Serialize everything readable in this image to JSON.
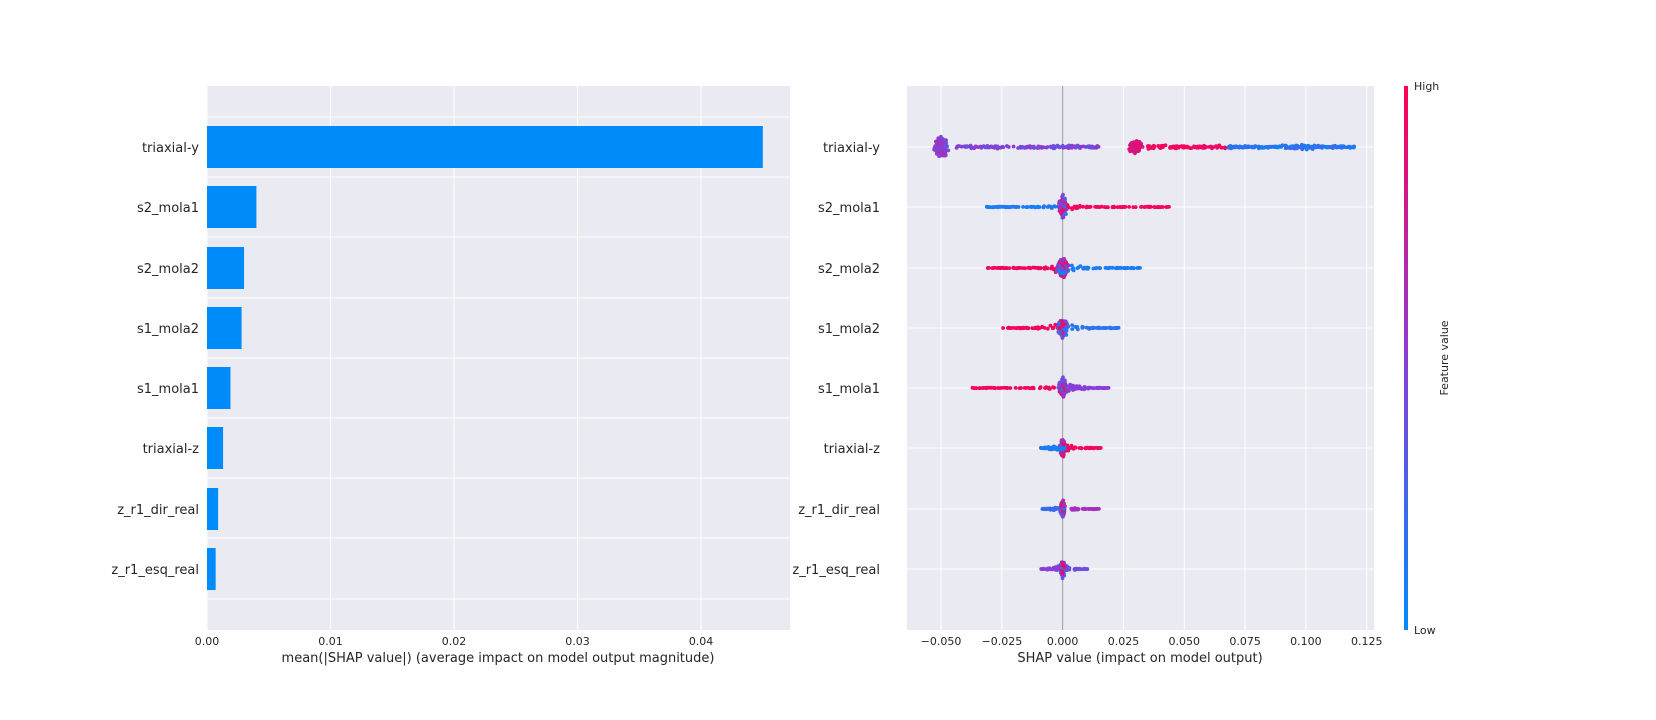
{
  "chart_data": [
    {
      "type": "bar",
      "orientation": "horizontal",
      "categories": [
        "triaxial-y",
        "s2_mola1",
        "s2_mola2",
        "s1_mola2",
        "s1_mola1",
        "triaxial-z",
        "z_r1_dir_real",
        "z_r1_esq_real"
      ],
      "values": [
        0.045,
        0.004,
        0.003,
        0.0028,
        0.0019,
        0.0013,
        0.0009,
        0.0007
      ],
      "xlabel": "mean(|SHAP value|) (average impact on model output magnitude)",
      "xticks": [
        "0.00",
        "0.01",
        "0.02",
        "0.03",
        "0.04"
      ],
      "xlim": [
        0,
        0.0472
      ],
      "grid": true,
      "bar_color": "#008bfb",
      "background": "#eaeaf2"
    },
    {
      "type": "scatter",
      "subtype": "beeswarm",
      "categories": [
        "triaxial-y",
        "s2_mola1",
        "s2_mola2",
        "s1_mola2",
        "s1_mola1",
        "triaxial-z",
        "z_r1_dir_real",
        "z_r1_esq_real"
      ],
      "series": [
        {
          "category": "triaxial-y",
          "x_min": -0.055,
          "x_max": 0.12,
          "dense_clusters": [
            -0.05,
            0.03
          ],
          "trend": "high values near -0.05 and 0.03–0.065, low values 0.07–0.12"
        },
        {
          "category": "s2_mola1",
          "x_min": -0.032,
          "x_max": 0.044,
          "dense_clusters": [
            0.0
          ],
          "trend": "high values positive, low values negative"
        },
        {
          "category": "s2_mola2",
          "x_min": -0.031,
          "x_max": 0.032,
          "dense_clusters": [
            0.002
          ],
          "trend": "high values negative, low values positive"
        },
        {
          "category": "s1_mola2",
          "x_min": -0.025,
          "x_max": 0.024,
          "dense_clusters": [
            0.0
          ],
          "trend": "high values negative, low values positive"
        },
        {
          "category": "s1_mola1",
          "x_min": -0.038,
          "x_max": 0.019,
          "dense_clusters": [
            0.0
          ],
          "trend": "high values negative"
        },
        {
          "category": "triaxial-z",
          "x_min": -0.009,
          "x_max": 0.016,
          "dense_clusters": [
            0.0
          ],
          "trend": "high values positive"
        },
        {
          "category": "z_r1_dir_real",
          "x_min": -0.009,
          "x_max": 0.015,
          "dense_clusters": [
            0.0
          ],
          "trend": "mixed"
        },
        {
          "category": "z_r1_esq_real",
          "x_min": -0.009,
          "x_max": 0.011,
          "dense_clusters": [
            0.0
          ],
          "trend": "mixed"
        }
      ],
      "xlabel": "SHAP value (impact on model output)",
      "xticks": [
        "−0.050",
        "−0.025",
        "0.000",
        "0.025",
        "0.050",
        "0.075",
        "0.100",
        "0.125"
      ],
      "xtick_values": [
        -0.05,
        -0.025,
        0.0,
        0.025,
        0.05,
        0.075,
        0.1,
        0.125
      ],
      "xlim": [
        -0.064,
        0.128
      ],
      "grid": true,
      "background": "#eaeaf2",
      "colorbar": {
        "label": "Feature value",
        "high_label": "High",
        "low_label": "Low",
        "high_color": "#ff0052",
        "low_color": "#008bfb"
      }
    }
  ]
}
